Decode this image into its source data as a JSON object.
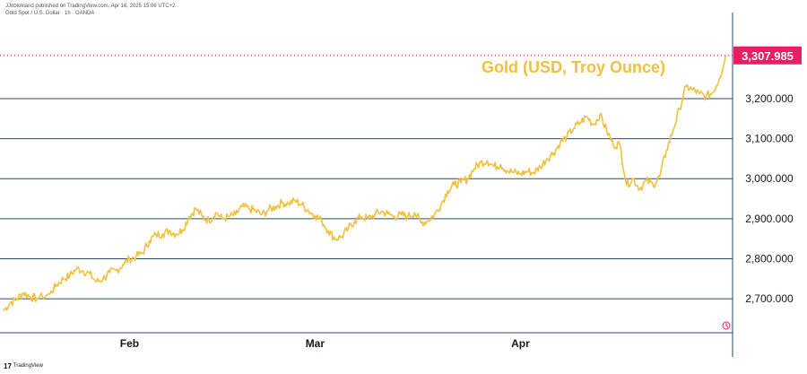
{
  "header": {
    "line1": "JJoblokland published on TradingView.com, Apr 16, 2025 15:06 UTC+2",
    "line2": "Gold Spot / U.S. Dollar · 1h · OANDA"
  },
  "footer": {
    "logo_glyph": "17",
    "brand": "TradingView"
  },
  "chart_data": {
    "type": "line",
    "title": "Gold (USD, Troy Ounce)",
    "series": [
      {
        "name": "",
        "color": "#f0c040",
        "points": [
          [
            "2025-01-13",
            2670
          ],
          [
            "2025-01-14",
            2690
          ],
          [
            "2025-01-15",
            2700
          ],
          [
            "2025-01-16",
            2715
          ],
          [
            "2025-01-17",
            2705
          ],
          [
            "2025-01-18",
            2700
          ],
          [
            "2025-01-20",
            2712
          ],
          [
            "2025-01-21",
            2735
          ],
          [
            "2025-01-22",
            2750
          ],
          [
            "2025-01-23",
            2758
          ],
          [
            "2025-01-24",
            2775
          ],
          [
            "2025-01-25",
            2770
          ],
          [
            "2025-01-26",
            2762
          ],
          [
            "2025-01-27",
            2742
          ],
          [
            "2025-01-28",
            2750
          ],
          [
            "2025-01-29",
            2765
          ],
          [
            "2025-01-30",
            2770
          ],
          [
            "2025-01-31",
            2785
          ],
          [
            "2025-02-01",
            2800
          ],
          [
            "2025-02-02",
            2805
          ],
          [
            "2025-02-03",
            2815
          ],
          [
            "2025-02-04",
            2845
          ],
          [
            "2025-02-05",
            2860
          ],
          [
            "2025-02-06",
            2862
          ],
          [
            "2025-02-07",
            2870
          ],
          [
            "2025-02-08",
            2862
          ],
          [
            "2025-02-09",
            2872
          ],
          [
            "2025-02-10",
            2905
          ],
          [
            "2025-02-11",
            2925
          ],
          [
            "2025-02-12",
            2905
          ],
          [
            "2025-02-13",
            2895
          ],
          [
            "2025-02-14",
            2915
          ],
          [
            "2025-02-15",
            2900
          ],
          [
            "2025-02-16",
            2905
          ],
          [
            "2025-02-17",
            2910
          ],
          [
            "2025-02-18",
            2930
          ],
          [
            "2025-02-19",
            2925
          ],
          [
            "2025-02-20",
            2920
          ],
          [
            "2025-02-21",
            2910
          ],
          [
            "2025-02-22",
            2922
          ],
          [
            "2025-02-23",
            2930
          ],
          [
            "2025-02-24",
            2940
          ],
          [
            "2025-02-25",
            2938
          ],
          [
            "2025-02-26",
            2945
          ],
          [
            "2025-02-27",
            2935
          ],
          [
            "2025-02-28",
            2920
          ],
          [
            "2025-03-01",
            2908
          ],
          [
            "2025-03-02",
            2895
          ],
          [
            "2025-03-03",
            2870
          ],
          [
            "2025-03-04",
            2850
          ],
          [
            "2025-03-05",
            2855
          ],
          [
            "2025-03-06",
            2875
          ],
          [
            "2025-03-07",
            2895
          ],
          [
            "2025-03-08",
            2905
          ],
          [
            "2025-03-09",
            2900
          ],
          [
            "2025-03-10",
            2910
          ],
          [
            "2025-03-11",
            2918
          ],
          [
            "2025-03-12",
            2912
          ],
          [
            "2025-03-13",
            2905
          ],
          [
            "2025-03-14",
            2910
          ],
          [
            "2025-03-15",
            2905
          ],
          [
            "2025-03-16",
            2915
          ],
          [
            "2025-03-17",
            2890
          ],
          [
            "2025-03-18",
            2895
          ],
          [
            "2025-03-19",
            2910
          ],
          [
            "2025-03-20",
            2935
          ],
          [
            "2025-03-21",
            2970
          ],
          [
            "2025-03-22",
            2985
          ],
          [
            "2025-03-23",
            2990
          ],
          [
            "2025-03-24",
            3000
          ],
          [
            "2025-03-25",
            3025
          ],
          [
            "2025-03-26",
            3040
          ],
          [
            "2025-03-27",
            3045
          ],
          [
            "2025-03-28",
            3030
          ],
          [
            "2025-03-29",
            3035
          ],
          [
            "2025-03-30",
            3020
          ],
          [
            "2025-03-31",
            3015
          ],
          [
            "2025-04-01",
            3012
          ],
          [
            "2025-04-02",
            3018
          ],
          [
            "2025-04-03",
            3015
          ],
          [
            "2025-04-04",
            3030
          ],
          [
            "2025-04-05",
            3050
          ],
          [
            "2025-04-06",
            3065
          ],
          [
            "2025-04-07",
            3090
          ],
          [
            "2025-04-08",
            3105
          ],
          [
            "2025-04-09",
            3125
          ],
          [
            "2025-04-10",
            3140
          ],
          [
            "2025-04-11",
            3155
          ],
          [
            "2025-04-12",
            3135
          ],
          [
            "2025-04-13",
            3160
          ],
          [
            "2025-04-14",
            3120
          ],
          [
            "2025-04-15",
            3085
          ],
          [
            "2025-04-16",
            3085
          ],
          [
            "2025-04-17",
            2985
          ],
          [
            "2025-04-18",
            3000
          ],
          [
            "2025-04-19",
            2975
          ],
          [
            "2025-04-20",
            2995
          ],
          [
            "2025-04-21",
            2985
          ],
          [
            "2025-04-22",
            3005
          ],
          [
            "2025-04-23",
            3070
          ],
          [
            "2025-04-24",
            3120
          ],
          [
            "2025-04-25",
            3175
          ],
          [
            "2025-04-26",
            3230
          ],
          [
            "2025-04-27",
            3222
          ],
          [
            "2025-04-28",
            3212
          ],
          [
            "2025-04-29",
            3205
          ],
          [
            "2025-04-30",
            3215
          ],
          [
            "2025-05-01",
            3250
          ],
          [
            "2025-05-02",
            3307.985
          ]
        ]
      }
    ],
    "x_ticks": [
      {
        "label": "Feb",
        "date": "2025-02-01"
      },
      {
        "label": "Mar",
        "date": "2025-03-01"
      },
      {
        "label": "Apr",
        "date": "2025-04-01"
      }
    ],
    "y_ticks": [
      {
        "value": 2700,
        "label": "2,700.000"
      },
      {
        "value": 2800,
        "label": "2,800.000"
      },
      {
        "value": 2900,
        "label": "2,900.000"
      },
      {
        "value": 3000,
        "label": "3,000.000"
      },
      {
        "value": 3100,
        "label": "3,100.000"
      },
      {
        "value": 3200,
        "label": "3,200.000"
      }
    ],
    "ylim": [
      2615,
      3415
    ],
    "xlim": [
      "2025-01-13",
      "2025-05-03"
    ],
    "last_price": {
      "value": 3307.985,
      "label": "3,307.985",
      "color": "#e91e63"
    },
    "grid": "horizontal",
    "line_color": "#f0c040",
    "grid_color": "#2c4a66"
  }
}
